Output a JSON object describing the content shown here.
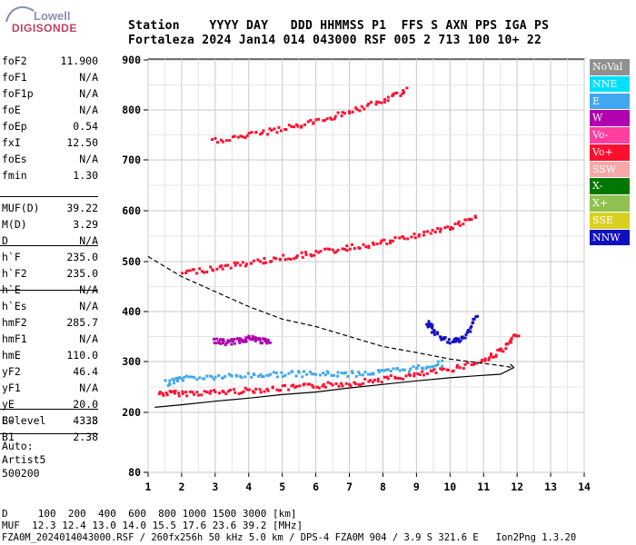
{
  "logo": {
    "line1": "Lowell",
    "line2": "DIGISONDE"
  },
  "header": {
    "row1": "Station    YYYY DAY   DDD HHMMSS P1  FFS S AXN PPS IGA PS",
    "row2": "Fortaleza 2024 Jan14 014 043000 RSF 005 2 713 100 10+ 22"
  },
  "params": {
    "group1": [
      {
        "name": "foF2",
        "value": "11.900"
      },
      {
        "name": "foF1",
        "value": "N/A"
      },
      {
        "name": "foF1p",
        "value": "N/A"
      },
      {
        "name": "foE",
        "value": "N/A"
      },
      {
        "name": "foEp",
        "value": "0.54"
      },
      {
        "name": "fxI",
        "value": "12.50"
      },
      {
        "name": "foEs",
        "value": "N/A"
      },
      {
        "name": "fmin",
        "value": "1.30"
      }
    ],
    "group2": [
      {
        "name": "MUF(D)",
        "value": "39.22"
      },
      {
        "name": "M(D)",
        "value": "3.29"
      },
      {
        "name": "D",
        "value": "N/A"
      }
    ],
    "group3": [
      {
        "name": "h`F",
        "value": "235.0"
      },
      {
        "name": "h`F2",
        "value": "235.0"
      },
      {
        "name": "h`E",
        "value": "N/A"
      },
      {
        "name": "h`Es",
        "value": "N/A"
      }
    ],
    "group4": [
      {
        "name": "hmF2",
        "value": "285.7"
      },
      {
        "name": "hmF1",
        "value": "N/A"
      },
      {
        "name": "hmE",
        "value": "110.0"
      },
      {
        "name": "yF2",
        "value": "46.4"
      },
      {
        "name": "yF1",
        "value": "N/A"
      },
      {
        "name": "yE",
        "value": "20.0"
      },
      {
        "name": "B0",
        "value": "43.8"
      },
      {
        "name": "B1",
        "value": "2.38"
      }
    ],
    "group5": [
      {
        "name": "C-level",
        "value": "33"
      }
    ],
    "auto": [
      "Auto:",
      "Artist5",
      "500200"
    ]
  },
  "legend": [
    {
      "label": "NoVal",
      "color": "#909090"
    },
    {
      "label": "NNE",
      "color": "#00e0ff"
    },
    {
      "label": "E",
      "color": "#40a8f0"
    },
    {
      "label": "W",
      "color": "#b000b0"
    },
    {
      "label": "Vo-",
      "color": "#ff3fa0"
    },
    {
      "label": "Vo+",
      "color": "#ff1030"
    },
    {
      "label": "SSW",
      "color": "#f8a8a8"
    },
    {
      "label": "X-",
      "color": "#007800"
    },
    {
      "label": "X+",
      "color": "#90c050"
    },
    {
      "label": "SSE",
      "color": "#d8d020"
    },
    {
      "label": "NNW",
      "color": "#1010c0"
    }
  ],
  "chart_data": {
    "type": "scatter",
    "xlabel": "",
    "ylabel": "",
    "xlim": [
      1,
      14
    ],
    "ylim": [
      80,
      900
    ],
    "x_ticks": [
      "1",
      "2",
      "3",
      "4",
      "5",
      "6",
      "7",
      "8",
      "9",
      "10",
      "11",
      "12",
      "13",
      "14"
    ],
    "y_ticks": [
      "80",
      "200",
      "300",
      "400",
      "500",
      "600",
      "700",
      "800",
      "900"
    ],
    "y_tick_values": [
      80,
      200,
      300,
      400,
      500,
      600,
      700,
      800,
      900
    ],
    "grid": true,
    "series": [
      {
        "name": "Vo+",
        "color": "#ff1030",
        "x": [
          1.3,
          2,
          3,
          4,
          5,
          6,
          7,
          8,
          9,
          10,
          11,
          11.6,
          12
        ],
        "y": [
          240,
          240,
          242,
          246,
          250,
          255,
          260,
          268,
          276,
          288,
          305,
          330,
          360
        ]
      },
      {
        "name": "E",
        "color": "#40a8f0",
        "x": [
          1.5,
          2,
          3,
          4,
          5,
          6,
          7,
          8,
          9,
          9.8
        ],
        "y": [
          260,
          270,
          272,
          275,
          278,
          278,
          278,
          282,
          290,
          300
        ]
      },
      {
        "name": "W",
        "color": "#b000b0",
        "x": [
          2.9,
          3.3,
          3.7,
          4,
          4.3,
          4.6
        ],
        "y": [
          345,
          340,
          345,
          350,
          345,
          340
        ]
      },
      {
        "name": "Vo+ (2nd)",
        "color": "#ff1030",
        "x": [
          2,
          3,
          4,
          5,
          6,
          7,
          8,
          9,
          10,
          10.8
        ],
        "y": [
          480,
          490,
          500,
          510,
          520,
          530,
          540,
          555,
          570,
          590
        ]
      },
      {
        "name": "Vo+ (3rd)",
        "color": "#ff1030",
        "x": [
          2.9,
          4,
          5,
          6,
          7,
          8,
          8.7
        ],
        "y": [
          740,
          752,
          765,
          780,
          800,
          820,
          845
        ]
      },
      {
        "name": "NNW",
        "color": "#1010c0",
        "x": [
          9.3,
          9.5,
          10,
          10.4,
          10.8
        ],
        "y": [
          380,
          360,
          340,
          350,
          400
        ]
      }
    ],
    "profile_solid": {
      "x": [
        1.2,
        2,
        3,
        4,
        5,
        6,
        7,
        8,
        9,
        10,
        10.8,
        11.5,
        11.9,
        11.8
      ],
      "y": [
        210,
        215,
        222,
        228,
        235,
        240,
        248,
        255,
        262,
        268,
        272,
        275,
        288,
        295
      ]
    },
    "profile_dashed": {
      "x": [
        1,
        1.5,
        2,
        3,
        4,
        5,
        6,
        7,
        8,
        9,
        10,
        10.8,
        11.5,
        11.9
      ],
      "y": [
        510,
        490,
        470,
        440,
        410,
        385,
        370,
        350,
        330,
        318,
        305,
        298,
        292,
        288
      ]
    }
  },
  "footer": {
    "d_row": "D     100  200  400  600  800 1000 1500 3000 [km]",
    "muf_row": "MUF  12.3 12.4 13.0 14.0 15.5 17.6 23.6 39.2 [MHz]",
    "info": "FZA0M_2024014043000.RSF / 260fx256h 50 kHz 5.0 km / DPS-4 FZA0M 904 / 3.9 S 321.6 E   Ion2Png 1.3.20"
  }
}
